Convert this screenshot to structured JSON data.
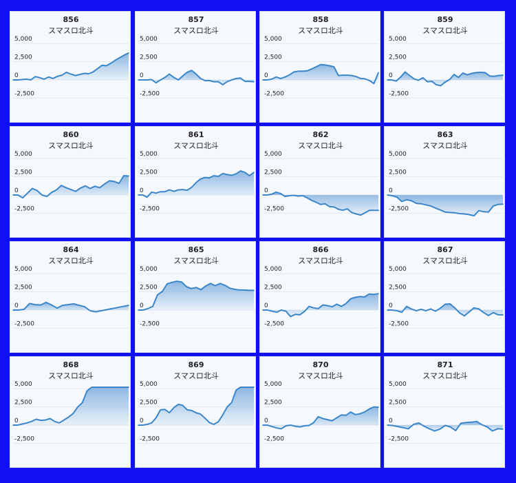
{
  "colors": {
    "background": "#1010f0",
    "line": "#3b86c9",
    "fill_top": "#88b4e0",
    "panel": "#f5f9fd"
  },
  "chart_data": [
    {
      "type": "area",
      "title": "856",
      "subtitle": "スマスロ北斗",
      "ylim": [
        -3500,
        5200
      ],
      "yticks": [
        5000,
        2500,
        0,
        -2500
      ],
      "ytick_labels": [
        "5,000",
        "2,500",
        "0",
        "-2,500"
      ],
      "values": [
        0,
        0,
        50,
        100,
        0,
        450,
        300,
        100,
        400,
        200,
        500,
        650,
        1050,
        800,
        600,
        750,
        900,
        850,
        1100,
        1550,
        2000,
        1950,
        2300,
        2700,
        3050,
        3400,
        3700
      ]
    },
    {
      "type": "area",
      "title": "857",
      "subtitle": "スマスロ北斗",
      "ylim": [
        -3500,
        5200
      ],
      "yticks": [
        5000,
        2500,
        0,
        -2500
      ],
      "ytick_labels": [
        "5,000",
        "2,500",
        "0",
        "-2,500"
      ],
      "values": [
        0,
        0,
        0,
        50,
        -400,
        0,
        350,
        800,
        350,
        0,
        550,
        1050,
        1300,
        800,
        200,
        -100,
        -100,
        -250,
        -250,
        -650,
        -250,
        0,
        200,
        250,
        -200,
        -200,
        -250
      ]
    },
    {
      "type": "area",
      "title": "858",
      "subtitle": "スマスロ北斗",
      "ylim": [
        -3500,
        5200
      ],
      "yticks": [
        5000,
        2500,
        0,
        -2500
      ],
      "ytick_labels": [
        "5,000",
        "2,500",
        "0",
        "-2,500"
      ],
      "values": [
        0,
        0,
        100,
        400,
        200,
        400,
        700,
        1100,
        1200,
        1200,
        1250,
        1500,
        1800,
        2100,
        2050,
        1950,
        1800,
        600,
        650,
        650,
        600,
        450,
        200,
        150,
        -100,
        -500,
        1000
      ]
    },
    {
      "type": "area",
      "title": "859",
      "subtitle": "スマスロ北斗",
      "ylim": [
        -3500,
        5200
      ],
      "yticks": [
        5000,
        2500,
        0,
        -2500
      ],
      "ytick_labels": [
        "5,000",
        "2,500",
        "0",
        "-2,500"
      ],
      "values": [
        0,
        0,
        -150,
        400,
        1100,
        600,
        150,
        -50,
        300,
        -250,
        -200,
        -650,
        -800,
        -300,
        50,
        750,
        350,
        950,
        700,
        900,
        1000,
        1050,
        1000,
        550,
        500,
        600,
        650
      ]
    },
    {
      "type": "area",
      "title": "860",
      "subtitle": "スマスロ北斗",
      "ylim": [
        -3500,
        5200
      ],
      "yticks": [
        5000,
        2500,
        0,
        -2500
      ],
      "ytick_labels": [
        "5,000",
        "2,500",
        "0",
        "-2,500"
      ],
      "values": [
        0,
        0,
        -400,
        250,
        900,
        600,
        0,
        -200,
        350,
        700,
        1300,
        1000,
        750,
        500,
        950,
        1250,
        900,
        1200,
        1000,
        1500,
        1950,
        1850,
        1600,
        2650,
        2600
      ]
    },
    {
      "type": "area",
      "title": "861",
      "subtitle": "スマスロ北斗",
      "ylim": [
        -3500,
        5200
      ],
      "yticks": [
        5000,
        2500,
        0,
        -2500
      ],
      "ytick_labels": [
        "5,000",
        "2,500",
        "0",
        "-2,500"
      ],
      "values": [
        0,
        0,
        -300,
        400,
        250,
        450,
        450,
        700,
        500,
        700,
        750,
        650,
        1050,
        1700,
        2200,
        2400,
        2350,
        2650,
        2550,
        2950,
        2800,
        2700,
        2900,
        3300,
        3100,
        2650,
        3100
      ]
    },
    {
      "type": "area",
      "title": "862",
      "subtitle": "スマスロ北斗",
      "ylim": [
        -3500,
        5200
      ],
      "yticks": [
        5000,
        2500,
        0,
        -2500
      ],
      "ytick_labels": [
        "5,000",
        "2,500",
        "0",
        "-2,500"
      ],
      "values": [
        0,
        0,
        100,
        400,
        200,
        -200,
        -100,
        -50,
        -150,
        -100,
        -400,
        -750,
        -1000,
        -1300,
        -1200,
        -1600,
        -1650,
        -1950,
        -2100,
        -1900,
        -2400,
        -2600,
        -2750,
        -2450,
        -2100,
        -2100,
        -2100
      ]
    },
    {
      "type": "area",
      "title": "863",
      "subtitle": "スマスロ北斗",
      "ylim": [
        -3500,
        5200
      ],
      "yticks": [
        5000,
        2500,
        0,
        -2500
      ],
      "ytick_labels": [
        "5,000",
        "2,500",
        "0",
        "-2,500"
      ],
      "values": [
        0,
        -100,
        -300,
        -900,
        -650,
        -800,
        -1150,
        -1200,
        -1350,
        -1500,
        -1800,
        -2050,
        -2350,
        -2400,
        -2450,
        -2550,
        -2600,
        -2700,
        -2850,
        -2150,
        -2300,
        -2350,
        -1500,
        -1300,
        -1250
      ]
    },
    {
      "type": "area",
      "title": "864",
      "subtitle": "スマスロ北斗",
      "ylim": [
        -3500,
        5200
      ],
      "yticks": [
        5000,
        2500,
        0,
        -2500
      ],
      "ytick_labels": [
        "5,000",
        "2,500",
        "0",
        "-2,500"
      ],
      "values": [
        0,
        0,
        100,
        900,
        750,
        700,
        1050,
        700,
        250,
        650,
        750,
        850,
        650,
        450,
        -100,
        -250,
        -100,
        50,
        200,
        350,
        500,
        650
      ]
    },
    {
      "type": "area",
      "title": "865",
      "subtitle": "スマスロ北斗",
      "ylim": [
        -3500,
        5200
      ],
      "yticks": [
        5000,
        2500,
        0,
        -2500
      ],
      "ytick_labels": [
        "5,000",
        "2,500",
        "0",
        "-2,500"
      ],
      "values": [
        0,
        0,
        200,
        500,
        2100,
        2550,
        3600,
        3800,
        3950,
        3850,
        3200,
        2950,
        3100,
        2800,
        3300,
        3650,
        3350,
        3650,
        3400,
        3000,
        2850,
        2750,
        2750,
        2700,
        2700
      ]
    },
    {
      "type": "area",
      "title": "866",
      "subtitle": "スマスロ北斗",
      "ylim": [
        -3500,
        5200
      ],
      "yticks": [
        5000,
        2500,
        0,
        -2500
      ],
      "ytick_labels": [
        "5,000",
        "2,500",
        "0",
        "-2,500"
      ],
      "values": [
        0,
        0,
        -150,
        -300,
        0,
        -150,
        -900,
        -600,
        -650,
        -200,
        500,
        300,
        200,
        700,
        600,
        450,
        800,
        500,
        900,
        1550,
        1750,
        1850,
        1800,
        2200,
        2150,
        2250
      ]
    },
    {
      "type": "area",
      "title": "867",
      "subtitle": "スマスロ北斗",
      "ylim": [
        -3500,
        5200
      ],
      "yticks": [
        5000,
        2500,
        0,
        -2500
      ],
      "ytick_labels": [
        "5,000",
        "2,500",
        "0",
        "-2,500"
      ],
      "values": [
        0,
        0,
        -100,
        -300,
        500,
        150,
        -100,
        100,
        -100,
        150,
        -150,
        250,
        800,
        850,
        300,
        -400,
        -800,
        -250,
        300,
        150,
        -350,
        -750,
        -350,
        -650,
        -650
      ]
    },
    {
      "type": "area",
      "title": "868",
      "subtitle": "スマスロ北斗",
      "ylim": [
        -3500,
        5200
      ],
      "yticks": [
        5000,
        2500,
        0,
        -2500
      ],
      "ytick_labels": [
        "5,000",
        "2,500",
        "0",
        "-2,500"
      ],
      "values": [
        0,
        0,
        150,
        300,
        500,
        800,
        650,
        700,
        900,
        500,
        300,
        700,
        1100,
        1600,
        2500,
        3100,
        4700,
        5200,
        5200,
        5200,
        5200,
        5200,
        5200,
        5200,
        5200,
        5200
      ]
    },
    {
      "type": "area",
      "title": "869",
      "subtitle": "スマスロ北斗",
      "ylim": [
        -3500,
        5200
      ],
      "yticks": [
        5000,
        2500,
        0,
        -2500
      ],
      "ytick_labels": [
        "5,000",
        "2,500",
        "0",
        "-2,500"
      ],
      "values": [
        0,
        0,
        100,
        300,
        1000,
        2100,
        2150,
        1700,
        2400,
        2850,
        2700,
        2100,
        2000,
        1700,
        1500,
        950,
        350,
        100,
        450,
        1400,
        2500,
        3100,
        4800,
        5200,
        5200,
        5200,
        5200
      ]
    },
    {
      "type": "area",
      "title": "870",
      "subtitle": "スマスロ北斗",
      "ylim": [
        -3500,
        5200
      ],
      "yticks": [
        5000,
        2500,
        0,
        -2500
      ],
      "ytick_labels": [
        "5,000",
        "2,500",
        "0",
        "-2,500"
      ],
      "values": [
        0,
        0,
        -200,
        -400,
        -500,
        -100,
        0,
        -150,
        -250,
        -100,
        -50,
        350,
        1150,
        900,
        750,
        600,
        1000,
        1400,
        1350,
        1800,
        1450,
        1550,
        1800,
        2200,
        2500,
        2450
      ]
    },
    {
      "type": "area",
      "title": "871",
      "subtitle": "スマスロ北斗",
      "ylim": [
        -3500,
        5200
      ],
      "yticks": [
        5000,
        2500,
        0,
        -2500
      ],
      "ytick_labels": [
        "5,000",
        "2,500",
        "0",
        "-2,500"
      ],
      "values": [
        0,
        -50,
        -200,
        -350,
        -500,
        100,
        300,
        -150,
        -500,
        -800,
        -550,
        -50,
        -250,
        -750,
        250,
        350,
        400,
        500,
        50,
        -250,
        -800,
        -500,
        -550
      ]
    }
  ]
}
